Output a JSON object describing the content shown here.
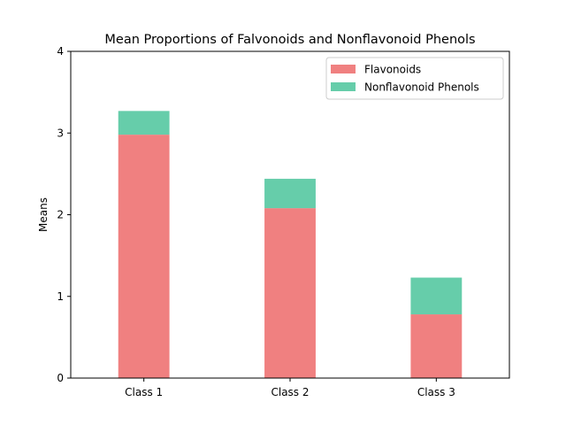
{
  "chart_data": {
    "type": "bar",
    "stacked": true,
    "title": "Mean Proportions of Falvonoids and Nonflavonoid Phenols",
    "xlabel": "",
    "ylabel": "Means",
    "categories": [
      "Class 1",
      "Class 2",
      "Class 3"
    ],
    "series": [
      {
        "name": "Flavonoids",
        "values": [
          2.98,
          2.08,
          0.78
        ],
        "color": "#f08080"
      },
      {
        "name": "Nonflavonoid Phenols",
        "values": [
          0.29,
          0.36,
          0.45
        ],
        "color": "#66cdaa"
      }
    ],
    "ylim": [
      0,
      4
    ],
    "yticks": [
      "0",
      "1",
      "2",
      "3",
      "4"
    ],
    "grid": false,
    "legend_position": "top-right"
  }
}
